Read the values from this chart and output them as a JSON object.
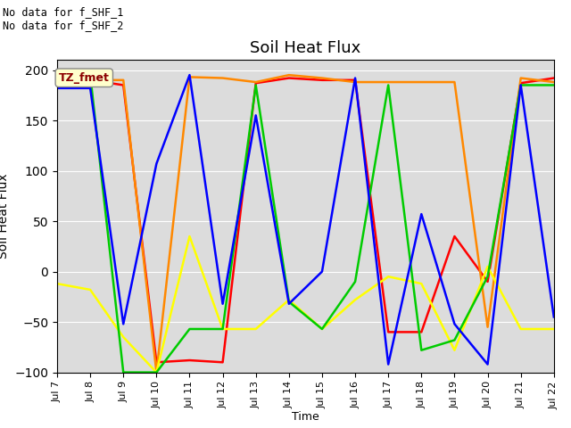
{
  "title": "Soil Heat Flux",
  "ylabel": "Soil Heat Flux",
  "xlabel": "Time",
  "ylim": [
    -100,
    210
  ],
  "yticks": [
    -100,
    -50,
    0,
    50,
    100,
    150,
    200
  ],
  "annotations": [
    "No data for f_SHF_1",
    "No data for f_SHF_2"
  ],
  "box_label": "TZ_fmet",
  "series_colors": {
    "SHF1": "#ff0000",
    "SHF2": "#ff8800",
    "SHF3": "#ffff00",
    "SHF4": "#00cc00",
    "SHF5": "#0000ff"
  },
  "xtick_labels": [
    "Jul 7",
    "Jul 8",
    "Jul 9",
    "Jul 10",
    "Jul 11",
    "Jul 12",
    "Jul 13",
    "Jul 14",
    "Jul 15",
    "Jul 16",
    "Jul 17",
    "Jul 18",
    "Jul 19",
    "Jul 20",
    "Jul 21",
    "Jul 22"
  ],
  "x_values": [
    7,
    8,
    9,
    10,
    11,
    12,
    13,
    14,
    15,
    16,
    17,
    18,
    19,
    20,
    21,
    22
  ],
  "SHF1": [
    183,
    190,
    185,
    -90,
    -88,
    -90,
    187,
    192,
    190,
    190,
    -60,
    -60,
    35,
    -10,
    187,
    192
  ],
  "SHF2": [
    187,
    190,
    190,
    -100,
    193,
    192,
    188,
    195,
    192,
    188,
    188,
    188,
    188,
    -55,
    192,
    188
  ],
  "SHF3": [
    -12,
    -18,
    -65,
    -100,
    35,
    -57,
    -57,
    -28,
    -57,
    -28,
    -5,
    -12,
    -78,
    5,
    -57,
    -57
  ],
  "SHF4": [
    195,
    195,
    -100,
    -100,
    -57,
    -57,
    185,
    -30,
    -57,
    -10,
    185,
    -78,
    -68,
    -5,
    185,
    185
  ],
  "SHF5": [
    182,
    182,
    -52,
    107,
    195,
    -32,
    155,
    -32,
    0,
    192,
    -92,
    57,
    -52,
    -92,
    185,
    -45
  ],
  "bg_color": "#dcdcdc",
  "legend_fontsize": 10,
  "title_fontsize": 13,
  "linewidth": 1.8
}
